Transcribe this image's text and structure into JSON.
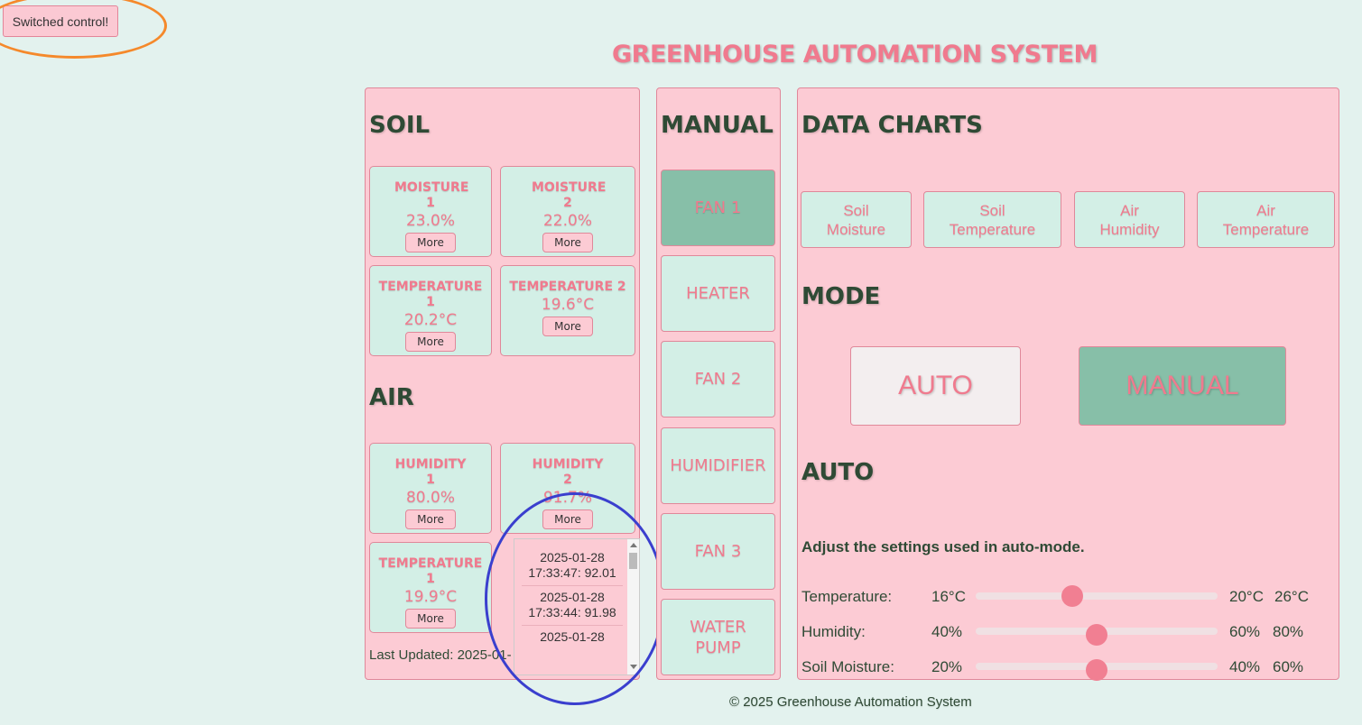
{
  "toast": {
    "text": "Switched control!"
  },
  "page_title": "GREENHOUSE AUTOMATION SYSTEM",
  "soil": {
    "heading": "SOIL",
    "cards": [
      {
        "label": "MOISTURE 1",
        "value": "23.0%",
        "more": "More"
      },
      {
        "label": "MOISTURE 2",
        "value": "22.0%",
        "more": "More"
      },
      {
        "label": "TEMPERATURE 1",
        "value": "20.2°C",
        "more": "More"
      },
      {
        "label": "TEMPERATURE 2",
        "value": "19.6°C",
        "more": "More"
      }
    ]
  },
  "air": {
    "heading": "AIR",
    "cards": [
      {
        "label": "HUMIDITY 1",
        "value": "80.0%",
        "more": "More"
      },
      {
        "label": "HUMIDITY 2",
        "value": "91.7%",
        "more": "More"
      },
      {
        "label": "TEMPERATURE 1",
        "value": "19.9°C",
        "more": "More"
      }
    ]
  },
  "last_updated": "Last Updated: 2025-01-",
  "history_popup": {
    "entries": [
      "2025-01-28 17:33:47: 92.01",
      "2025-01-28 17:33:44: 91.98",
      "2025-01-28"
    ]
  },
  "manual": {
    "heading": "MANUAL",
    "buttons": [
      {
        "label": "FAN 1",
        "active": true
      },
      {
        "label": "HEATER",
        "active": false
      },
      {
        "label": "FAN 2",
        "active": false
      },
      {
        "label": "HUMIDIFIER",
        "active": false
      },
      {
        "label": "FAN 3",
        "active": false
      },
      {
        "label": "WATER PUMP",
        "active": false
      }
    ]
  },
  "charts": {
    "heading": "DATA CHARTS",
    "buttons": [
      "Soil Moisture",
      "Soil Temperature",
      "Air Humidity",
      "Air Temperature"
    ]
  },
  "mode": {
    "heading": "MODE",
    "auto_label": "AUTO",
    "manual_label": "MANUAL",
    "selected": "MANUAL"
  },
  "auto": {
    "heading": "AUTO",
    "description": "Adjust the settings used in auto-mode.",
    "sliders": [
      {
        "label": "Temperature:",
        "min": "16°C",
        "current": "20°C",
        "max": "26°C",
        "level": 0.4
      },
      {
        "label": "Humidity:",
        "min": "40%",
        "current": "60%",
        "max": "80%",
        "level": 0.5
      },
      {
        "label": "Soil Moisture:",
        "min": "20%",
        "current": "40%",
        "max": "60%",
        "level": 0.5
      }
    ]
  },
  "footer": "© 2025 Greenhouse Automation System",
  "colors": {
    "accent_pink": "#f07a8e",
    "panel_pink": "#fccbd4",
    "card_mint": "#d3efe6",
    "active_green": "#87bfa8"
  }
}
